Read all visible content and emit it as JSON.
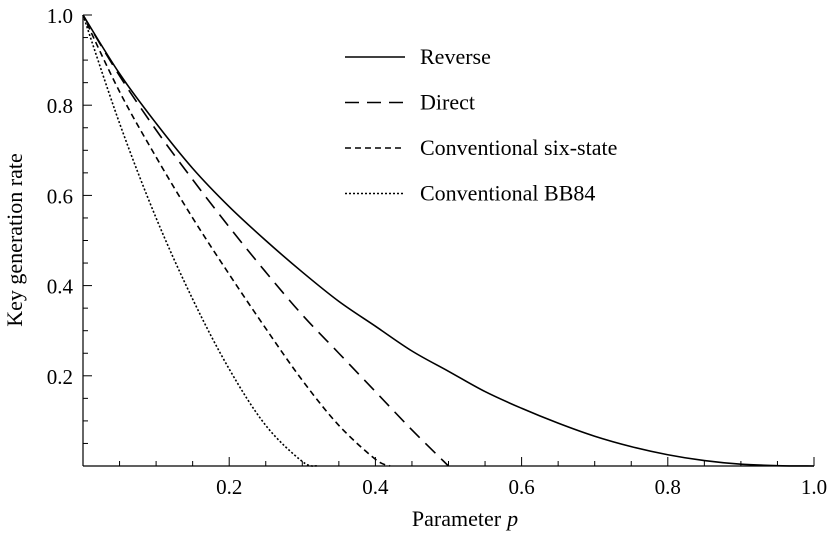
{
  "chart_data": {
    "type": "line",
    "title": "",
    "xlabel": "Parameter",
    "xlabel_var": "p",
    "ylabel": "Key generation rate",
    "xlim": [
      0,
      1.0
    ],
    "ylim": [
      0,
      1.0
    ],
    "x_ticks": [
      0.2,
      0.4,
      0.6,
      0.8,
      1.0
    ],
    "x_tick_labels": [
      "0.2",
      "0.4",
      "0.6",
      "0.8",
      "1.0"
    ],
    "y_ticks": [
      0.2,
      0.4,
      0.6,
      0.8,
      1.0
    ],
    "y_tick_labels": [
      "0.2",
      "0.4",
      "0.6",
      "0.8",
      "1.0"
    ],
    "grid": false,
    "legend_position": "top-center",
    "series": [
      {
        "name": "Reverse",
        "style": "solid",
        "x": [
          0,
          0.05,
          0.1,
          0.15,
          0.2,
          0.25,
          0.3,
          0.35,
          0.4,
          0.45,
          0.5,
          0.55,
          0.6,
          0.65,
          0.7,
          0.75,
          0.8,
          0.85,
          0.9,
          0.95,
          1.0
        ],
        "y": [
          1.0,
          0.87,
          0.76,
          0.66,
          0.575,
          0.5,
          0.43,
          0.365,
          0.31,
          0.255,
          0.21,
          0.165,
          0.128,
          0.095,
          0.066,
          0.043,
          0.025,
          0.012,
          0.004,
          0.0008,
          0.0
        ]
      },
      {
        "name": "Direct",
        "style": "dashed",
        "x": [
          0,
          0.05,
          0.1,
          0.15,
          0.2,
          0.25,
          0.3,
          0.35,
          0.4,
          0.45,
          0.5
        ],
        "y": [
          1.0,
          0.865,
          0.745,
          0.635,
          0.53,
          0.43,
          0.335,
          0.25,
          0.165,
          0.08,
          0.0
        ]
      },
      {
        "name": "Conventional six-state",
        "style": "short-dashed",
        "x": [
          0,
          0.05,
          0.1,
          0.15,
          0.2,
          0.25,
          0.3,
          0.35,
          0.4,
          0.42
        ],
        "y": [
          1.0,
          0.83,
          0.685,
          0.55,
          0.425,
          0.305,
          0.19,
          0.09,
          0.015,
          0.0
        ]
      },
      {
        "name": "Conventional BB84",
        "style": "dotted",
        "x": [
          0,
          0.05,
          0.1,
          0.15,
          0.2,
          0.25,
          0.3,
          0.32
        ],
        "y": [
          1.0,
          0.76,
          0.55,
          0.37,
          0.215,
          0.09,
          0.01,
          0.0
        ]
      }
    ]
  }
}
